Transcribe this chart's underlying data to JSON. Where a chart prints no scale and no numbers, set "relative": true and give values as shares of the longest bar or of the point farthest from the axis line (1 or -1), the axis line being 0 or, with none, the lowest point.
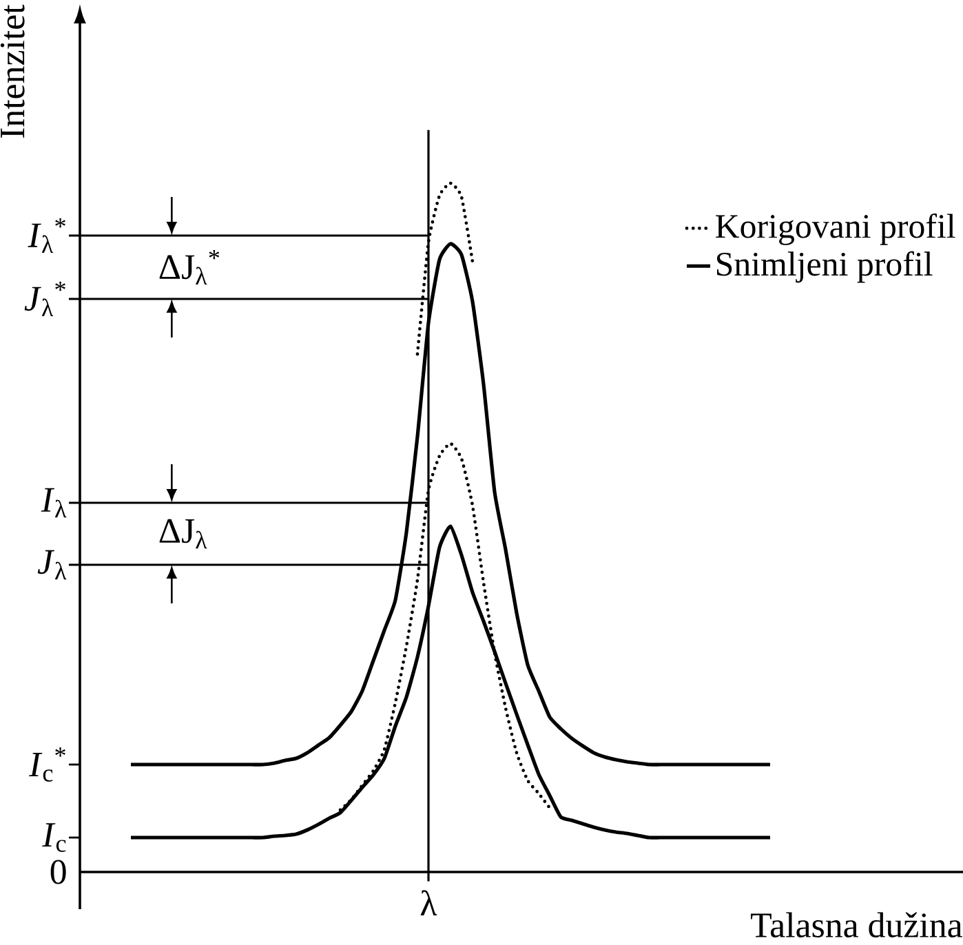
{
  "chart_data": {
    "type": "line",
    "relative": true,
    "xlabel": "Talasna dužina",
    "ylabel": "Intenzitet",
    "legend": "top right",
    "marker": "none",
    "categories": [
      null,
      null,
      null,
      null,
      null,
      null,
      null,
      null,
      null,
      null,
      null,
      null,
      null,
      null,
      null,
      null,
      null,
      null,
      null,
      null,
      null,
      null,
      null,
      null,
      null,
      null,
      null,
      null,
      null,
      null,
      null,
      null,
      null,
      null,
      null,
      null,
      null,
      null,
      null,
      null,
      null,
      null,
      null,
      null,
      null,
      null,
      null,
      null,
      null,
      null,
      null,
      null,
      null,
      null,
      null,
      null,
      null,
      null,
      null
    ],
    "series": [
      {
        "name": "Korigovani profil",
        "color": "#000000",
        "line_style": "dotted",
        "values": [
          null,
          null,
          null,
          null,
          null,
          null,
          null,
          null,
          null,
          null,
          null,
          null,
          null,
          null,
          null,
          null,
          null,
          null,
          null,
          null,
          null,
          null,
          null,
          null,
          null,
          null,
          0.752,
          0.914,
          0.982,
          1,
          0.98,
          0.886,
          null,
          null,
          null,
          null,
          null,
          null,
          null,
          null,
          null,
          null,
          null,
          null,
          null,
          null,
          null,
          null,
          null,
          null,
          null,
          null,
          null,
          null,
          null,
          null,
          null,
          null,
          null
        ]
      },
      {
        "name": "Snimljeni profil",
        "color": "#000000",
        "line_style": "solid",
        "values": [
          0.156,
          0.156,
          0.156,
          0.156,
          0.156,
          0.156,
          0.156,
          0.156,
          0.156,
          0.156,
          0.156,
          0.156,
          0.156,
          0.158,
          0.162,
          0.165,
          0.173,
          0.184,
          0.195,
          0.213,
          0.233,
          0.263,
          0.307,
          0.351,
          0.395,
          0.493,
          0.632,
          0.797,
          0.889,
          0.912,
          0.896,
          0.828,
          0.708,
          0.552,
          0.468,
          0.376,
          0.301,
          0.263,
          0.225,
          0.208,
          0.194,
          0.183,
          0.173,
          0.167,
          0.163,
          0.16,
          0.158,
          0.156,
          0.156,
          0.156,
          0.156,
          0.156,
          0.156,
          0.156,
          0.156,
          0.156,
          0.156,
          0.156,
          0.156
        ]
      },
      {
        "color": "#000000",
        "line_style": "dotted",
        "values": [
          null,
          null,
          null,
          null,
          null,
          null,
          null,
          null,
          null,
          null,
          null,
          null,
          null,
          null,
          null,
          null,
          null,
          null,
          null,
          0.09,
          0.105,
          0.126,
          0.147,
          0.178,
          0.246,
          0.328,
          0.424,
          0.554,
          0.604,
          0.622,
          0.6,
          0.532,
          0.42,
          0.318,
          0.238,
          0.173,
          0.133,
          0.114,
          0.093,
          null,
          null,
          null,
          null,
          null,
          null,
          null,
          null,
          null,
          null,
          null,
          null,
          null,
          null,
          null,
          null,
          null,
          null,
          null,
          null
        ]
      },
      {
        "color": "#000000",
        "line_style": "solid",
        "values": [
          0.05,
          0.05,
          0.05,
          0.05,
          0.05,
          0.05,
          0.05,
          0.05,
          0.05,
          0.05,
          0.05,
          0.05,
          0.05,
          0.052,
          0.053,
          0.055,
          0.061,
          0.069,
          0.078,
          0.086,
          0.104,
          0.123,
          0.141,
          0.165,
          0.212,
          0.254,
          0.312,
          0.386,
          0.471,
          0.502,
          0.46,
          0.406,
          0.364,
          0.32,
          0.274,
          0.229,
          0.185,
          0.142,
          0.111,
          0.08,
          0.075,
          0.07,
          0.065,
          0.061,
          0.058,
          0.056,
          0.053,
          0.05,
          0.05,
          0.05,
          0.05,
          0.05,
          0.05,
          0.05,
          0.05,
          0.05,
          0.05,
          0.05,
          0.05
        ]
      }
    ],
    "ref_lines": [
      {
        "axis": "y",
        "value": 0.924,
        "label": "*I*$_{λ}$$^{*}$"
      },
      {
        "axis": "y",
        "value": 0.832,
        "label": "*J*$_{λ}$$^{*}$"
      },
      {
        "axis": "y",
        "value": 0.536,
        "label": "*I*$_{λ}$"
      },
      {
        "axis": "y",
        "value": 0.446,
        "label": "*J*$_{λ}$"
      }
    ],
    "annotations": [
      "0",
      "*I*$_{c}$",
      "*I*$_{c}$$^{*}$",
      "ΔJ$_{λ}$$^{*}$",
      "ΔJ$_{λ}$",
      "λ"
    ]
  }
}
